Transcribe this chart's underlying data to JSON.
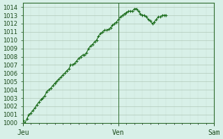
{
  "title": "",
  "background_color": "#d8f0e8",
  "plot_bg_color": "#d8f0e8",
  "line_color": "#1a6b1a",
  "marker_color": "#1a6b1a",
  "grid_color_major": "#b0c8b8",
  "grid_color_minor": "#c8e0d0",
  "axis_color": "#2d6b2d",
  "tick_label_color": "#1a4a1a",
  "ylim": [
    1000,
    1014.5
  ],
  "yticks": [
    1000,
    1001,
    1002,
    1003,
    1004,
    1005,
    1006,
    1007,
    1008,
    1009,
    1010,
    1011,
    1012,
    1013,
    1014
  ],
  "xlabel_ticks": [
    0,
    48,
    96
  ],
  "xlabel_labels": [
    "Jeu",
    "Ven",
    "Sam"
  ],
  "vlines": [
    0,
    48,
    96
  ],
  "y_values": [
    1000.3,
    1000.0,
    1000.5,
    1001.0,
    1001.2,
    1001.5,
    1001.8,
    1002.2,
    1002.5,
    1002.8,
    1003.0,
    1003.3,
    1003.8,
    1004.0,
    1004.2,
    1004.5,
    1004.8,
    1005.0,
    1005.3,
    1005.5,
    1005.8,
    1006.0,
    1006.3,
    1006.5,
    1007.0,
    1007.0,
    1007.2,
    1007.5,
    1007.8,
    1008.0,
    1008.2,
    1008.2,
    1008.5,
    1009.0,
    1009.3,
    1009.5,
    1009.8,
    1010.0,
    1010.5,
    1010.8,
    1011.0,
    1011.2,
    1011.2,
    1011.3,
    1011.5,
    1011.8,
    1012.0,
    1012.2,
    1012.5,
    1012.8,
    1013.0,
    1013.2,
    1013.3,
    1013.5,
    1013.5,
    1013.5,
    1013.8,
    1013.8,
    1013.5,
    1013.2,
    1013.0,
    1013.0,
    1012.8,
    1012.5,
    1012.3,
    1012.0,
    1012.2,
    1012.5,
    1012.8,
    1012.8,
    1013.0,
    1013.0,
    1013.0
  ]
}
